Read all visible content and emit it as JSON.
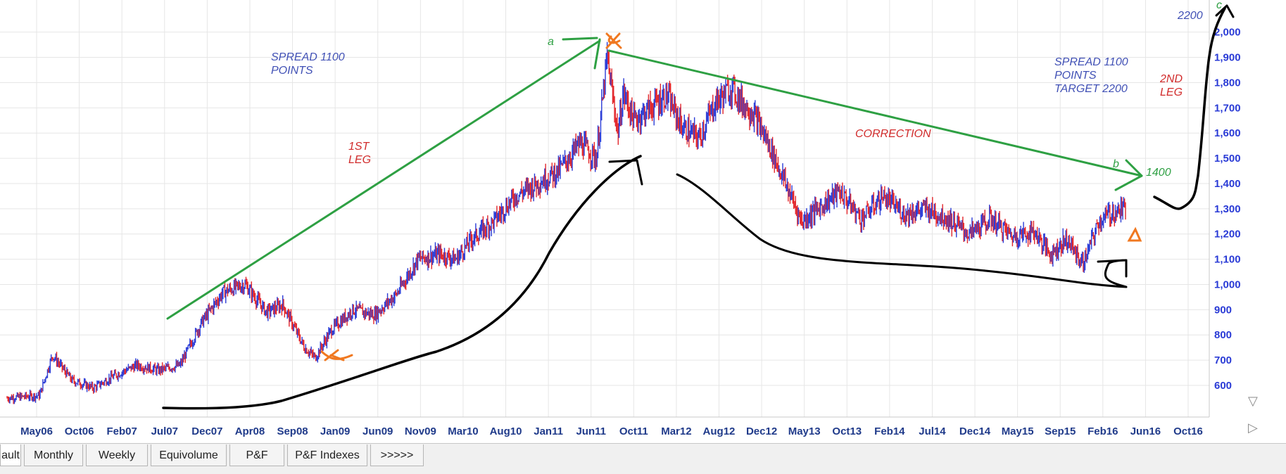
{
  "chart_data": {
    "type": "line",
    "title": "",
    "xlabel": "",
    "ylabel": "",
    "ylim": [
      500,
      2200
    ],
    "y_ticks": [
      "600",
      "700",
      "800",
      "900",
      "1,000",
      "1,100",
      "1,200",
      "1,300",
      "1,400",
      "1,500",
      "1,600",
      "1,700",
      "1,800",
      "1,900",
      "2,000"
    ],
    "x_ticks": [
      "May06",
      "Oct06",
      "Feb07",
      "Jul07",
      "Dec07",
      "Apr08",
      "Sep08",
      "Jan09",
      "Jun09",
      "Nov09",
      "Mar10",
      "Aug10",
      "Jan11",
      "Jun11",
      "Oct11",
      "Mar12",
      "Aug12",
      "Dec12",
      "May13",
      "Oct13",
      "Feb14",
      "Jul14",
      "Dec14",
      "May15",
      "Sep15",
      "Feb16",
      "Jun16",
      "Oct16"
    ],
    "grid": true,
    "price_series": {
      "x": [
        2006.0,
        2006.3,
        2006.42,
        2006.6,
        2006.8,
        2007.0,
        2007.2,
        2007.4,
        2007.6,
        2007.8,
        2008.0,
        2008.2,
        2008.4,
        2008.55,
        2008.75,
        2008.85,
        2009.0,
        2009.2,
        2009.4,
        2009.6,
        2009.8,
        2010.0,
        2010.15,
        2010.3,
        2010.5,
        2010.7,
        2010.9,
        2011.1,
        2011.3,
        2011.45,
        2011.55,
        2011.65,
        2011.7,
        2011.8,
        2011.95,
        2012.1,
        2012.25,
        2012.4,
        2012.55,
        2012.7,
        2012.8,
        2012.9,
        2013.05,
        2013.2,
        2013.35,
        2013.5,
        2013.7,
        2013.9,
        2014.1,
        2014.3,
        2014.5,
        2014.7,
        2014.9,
        2015.1,
        2015.3,
        2015.5,
        2015.65,
        2015.8,
        2015.95,
        2016.1,
        2016.2,
        2016.35
      ],
      "y": [
        550,
        560,
        720,
        620,
        590,
        640,
        680,
        660,
        680,
        850,
        970,
        1000,
        890,
        920,
        750,
        710,
        820,
        900,
        880,
        960,
        1100,
        1120,
        1100,
        1180,
        1250,
        1350,
        1400,
        1450,
        1560,
        1500,
        1900,
        1600,
        1760,
        1650,
        1700,
        1750,
        1620,
        1580,
        1720,
        1780,
        1720,
        1680,
        1550,
        1400,
        1250,
        1300,
        1370,
        1260,
        1350,
        1280,
        1300,
        1260,
        1200,
        1260,
        1190,
        1210,
        1120,
        1180,
        1080,
        1250,
        1280,
        1300
      ]
    },
    "candle_colors": {
      "up": "#2a3bd6",
      "down": "#e2262b"
    },
    "annotations": {
      "spread_left": [
        "SPREAD 1100",
        "POINTS"
      ],
      "spread_right": [
        "SPREAD 1100",
        "POINTS",
        "TARGET 2200"
      ],
      "first_leg": [
        "1ST",
        "LEG"
      ],
      "second_leg": [
        "2ND",
        "LEG"
      ],
      "correction": "CORRECTION",
      "label_a": "a",
      "label_b": "b",
      "label_c": "c",
      "value_1400": "1400",
      "value_2200": "2200"
    }
  },
  "tabs": [
    {
      "label": "ault",
      "active": true
    },
    {
      "label": "Monthly",
      "active": false
    },
    {
      "label": "Weekly",
      "active": false
    },
    {
      "label": "Equivolume",
      "active": false
    },
    {
      "label": "P&F",
      "active": false
    },
    {
      "label": "P&F Indexes",
      "active": false
    },
    {
      "label": ">>>>>",
      "active": false
    }
  ],
  "colors": {
    "axis_text": "#2a3bd6",
    "date_text": "#1f3a8a",
    "grid": "#e6e6e6",
    "trend_green": "#2ea043",
    "annot_red": "#d12b2b",
    "annot_blue": "#4050b5",
    "marker_orange": "#f07820",
    "ink_black": "#000000"
  }
}
